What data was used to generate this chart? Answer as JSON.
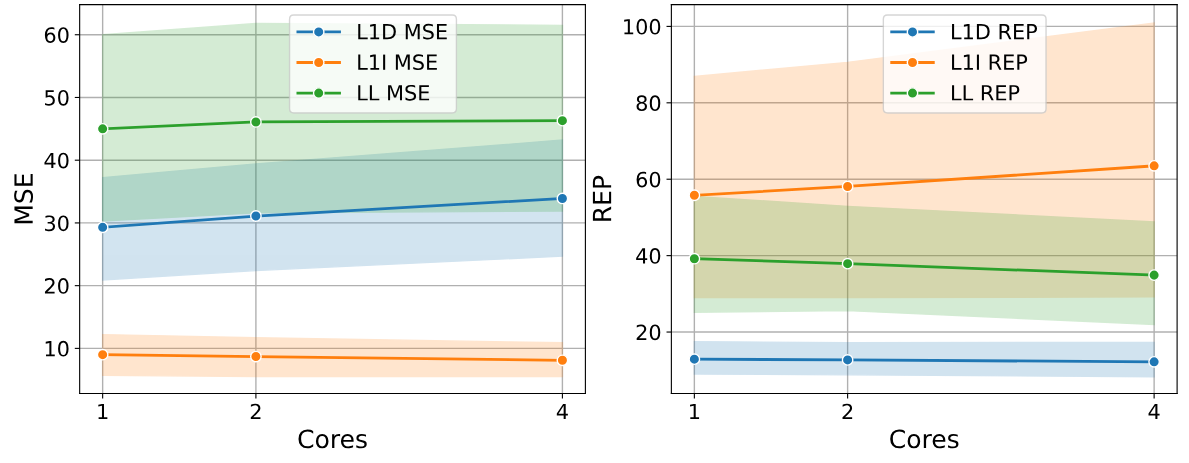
{
  "chart_data": [
    {
      "type": "line",
      "xlabel": "Cores",
      "ylabel": "MSE",
      "x": [
        1,
        2,
        4
      ],
      "xlim": [
        0.85,
        4.15
      ],
      "xticks": [
        1,
        2,
        4
      ],
      "ylim": [
        2.8,
        64.8
      ],
      "yticks": [
        10,
        20,
        30,
        40,
        50,
        60
      ],
      "grid": true,
      "legend": "top",
      "marker": "circle",
      "line_style": "solid",
      "series": [
        {
          "name": "L1D MSE",
          "color": "#1f77b4",
          "values": [
            29.3,
            31.1,
            33.9
          ],
          "lower": [
            20.9,
            22.4,
            24.7
          ],
          "upper": [
            37.2,
            39.4,
            43.2
          ]
        },
        {
          "name": "L1I MSE",
          "color": "#ff7f0e",
          "values": [
            9.0,
            8.7,
            8.1
          ],
          "lower": [
            5.7,
            5.5,
            5.5
          ],
          "upper": [
            12.2,
            11.7,
            10.9
          ]
        },
        {
          "name": "LL MSE",
          "color": "#2ca02c",
          "values": [
            45.0,
            46.1,
            46.3
          ],
          "lower": [
            30.3,
            31.6,
            31.9
          ],
          "upper": [
            60.0,
            61.8,
            61.5
          ]
        }
      ]
    },
    {
      "type": "line",
      "xlabel": "Cores",
      "ylabel": "REP",
      "x": [
        1,
        2,
        4
      ],
      "xlim": [
        0.85,
        4.15
      ],
      "xticks": [
        1,
        2,
        4
      ],
      "ylim": [
        3.9,
        105.7
      ],
      "yticks": [
        20,
        40,
        60,
        80,
        100
      ],
      "grid": true,
      "legend": "top",
      "marker": "circle",
      "line_style": "solid",
      "series": [
        {
          "name": "L1D REP",
          "color": "#1f77b4",
          "values": [
            12.9,
            12.7,
            12.2
          ],
          "lower": [
            9.0,
            8.8,
            8.3
          ],
          "upper": [
            17.5,
            17.2,
            17.3
          ]
        },
        {
          "name": "L1I REP",
          "color": "#ff7f0e",
          "values": [
            55.8,
            58.1,
            63.5
          ],
          "lower": [
            29.0,
            29.0,
            29.2
          ],
          "upper": [
            86.9,
            90.6,
            100.9
          ]
        },
        {
          "name": "LL REP",
          "color": "#2ca02c",
          "values": [
            39.2,
            37.9,
            34.9
          ],
          "lower": [
            25.2,
            25.6,
            22.0
          ],
          "upper": [
            55.5,
            52.9,
            48.8
          ]
        }
      ]
    }
  ]
}
